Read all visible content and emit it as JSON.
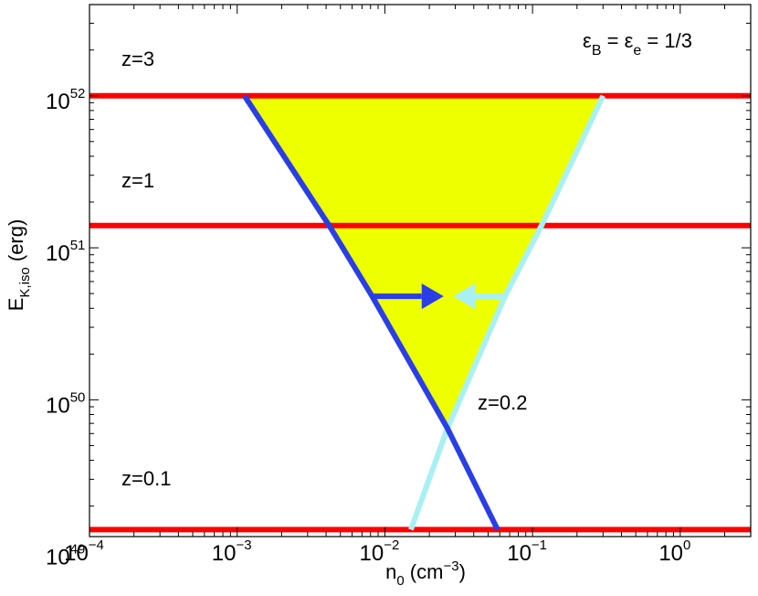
{
  "chart_data": {
    "type": "line",
    "xscale": "log",
    "yscale": "log",
    "xlim": [
      0.0001,
      3
    ],
    "ylim": [
      1.26e+49,
      3.98e+52
    ],
    "xlabel": {
      "base": "n",
      "sub": "0",
      "unit_pre": " (cm",
      "unit_sup": "−3",
      "unit_post": ")"
    },
    "ylabel": {
      "base": "E",
      "sub": "K,iso",
      "unit": " (erg)"
    },
    "xticks": [
      {
        "value": 0.0001,
        "base": "10",
        "exp": "−4"
      },
      {
        "value": 0.001,
        "base": "10",
        "exp": "−3"
      },
      {
        "value": 0.01,
        "base": "10",
        "exp": "−2"
      },
      {
        "value": 0.1,
        "base": "10",
        "exp": "−1"
      },
      {
        "value": 1,
        "base": "10",
        "exp": "0"
      }
    ],
    "yticks": [
      {
        "value": 1e+49,
        "base": "10",
        "exp": "49"
      },
      {
        "value": 1e+50,
        "base": "10",
        "exp": "50"
      },
      {
        "value": 1e+51,
        "base": "10",
        "exp": "51"
      },
      {
        "value": 1e+52,
        "base": "10",
        "exp": "52"
      }
    ],
    "horizontal_lines": [
      {
        "label": "z=3",
        "y": 1e+52,
        "color": "#ff0000"
      },
      {
        "label": "z=1",
        "y": 1.4e+51,
        "color": "#ff0000"
      },
      {
        "label": "z=0.1",
        "y": 1.4e+49,
        "color": "#ff0000"
      }
    ],
    "series": [
      {
        "color": "#2a3ee8",
        "x": [
          0.00112,
          0.0042,
          0.0082,
          0.0265,
          0.058
        ],
        "y": [
          1e+52,
          1.4e+51,
          4.8e+50,
          6.5e+49,
          1.4e+49
        ]
      },
      {
        "color": "#a8f0f4",
        "x": [
          0.3,
          0.115,
          0.065,
          0.0265,
          0.015
        ],
        "y": [
          1e+52,
          1.4e+51,
          4.8e+50,
          6.5e+49,
          1.4e+49
        ]
      }
    ],
    "allowed_region": {
      "color": "#eeff00",
      "x": [
        0.00112,
        0.3,
        0.115,
        0.065,
        0.0265,
        0.0082,
        0.0042
      ],
      "y": [
        1e+52,
        1e+52,
        1.4e+51,
        4.8e+50,
        6.5e+49,
        4.8e+50,
        1.4e+51
      ]
    },
    "arrows": [
      {
        "color": "#2a3ee8",
        "from_x": 0.0082,
        "to_x": 0.025,
        "y": 4.8e+50
      },
      {
        "color": "#a8f0f4",
        "from_x": 0.065,
        "to_x": 0.029,
        "y": 4.8e+50
      }
    ],
    "annotations": {
      "z02": "z=0.2",
      "eps_sym": "ε",
      "eps_b_sub": "B",
      "eps_e_sub": "e",
      "eq1": " = ",
      "eq2": " = 1/3"
    }
  }
}
